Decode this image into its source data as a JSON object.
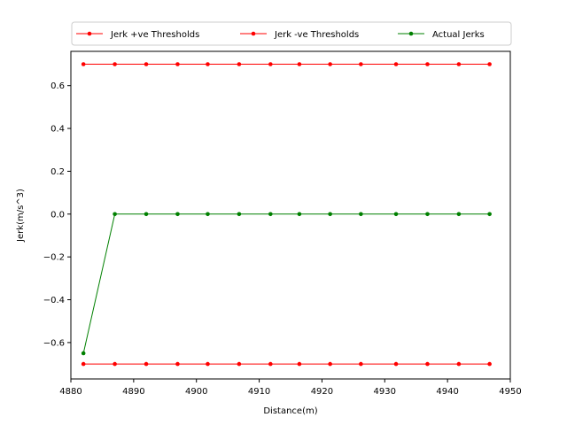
{
  "chart_data": {
    "type": "line",
    "title": "",
    "xlabel": "Distance(m)",
    "ylabel": "Jerk(m/s^3)",
    "xlim": [
      4880,
      4950
    ],
    "ylim": [
      -0.77,
      0.76
    ],
    "x_ticks": [
      "4880",
      "4890",
      "4900",
      "4910",
      "4920",
      "4930",
      "4940",
      "4950"
    ],
    "y_ticks": [
      "−0.6",
      "−0.4",
      "−0.2",
      "0.0",
      "0.2",
      "0.4",
      "0.6"
    ],
    "grid": false,
    "legend_position": "top-center",
    "x": [
      4882.0,
      4887.0,
      4892.0,
      4897.0,
      4901.8,
      4906.8,
      4911.8,
      4916.4,
      4921.3,
      4926.2,
      4931.8,
      4936.8,
      4941.8,
      4946.7
    ],
    "series": [
      {
        "name": "Jerk +ve Thresholds",
        "color": "#ff0000",
        "values": [
          0.7,
          0.7,
          0.7,
          0.7,
          0.7,
          0.7,
          0.7,
          0.7,
          0.7,
          0.7,
          0.7,
          0.7,
          0.7,
          0.7
        ]
      },
      {
        "name": "Jerk -ve Thresholds",
        "color": "#ff0000",
        "values": [
          -0.7,
          -0.7,
          -0.7,
          -0.7,
          -0.7,
          -0.7,
          -0.7,
          -0.7,
          -0.7,
          -0.7,
          -0.7,
          -0.7,
          -0.7,
          -0.7
        ]
      },
      {
        "name": "Actual Jerks",
        "color": "#008000",
        "values": [
          -0.65,
          0.0,
          0.0,
          0.0,
          0.0,
          0.0,
          0.0,
          0.0,
          0.0,
          0.0,
          0.0,
          0.0,
          0.0,
          0.0
        ]
      }
    ]
  }
}
